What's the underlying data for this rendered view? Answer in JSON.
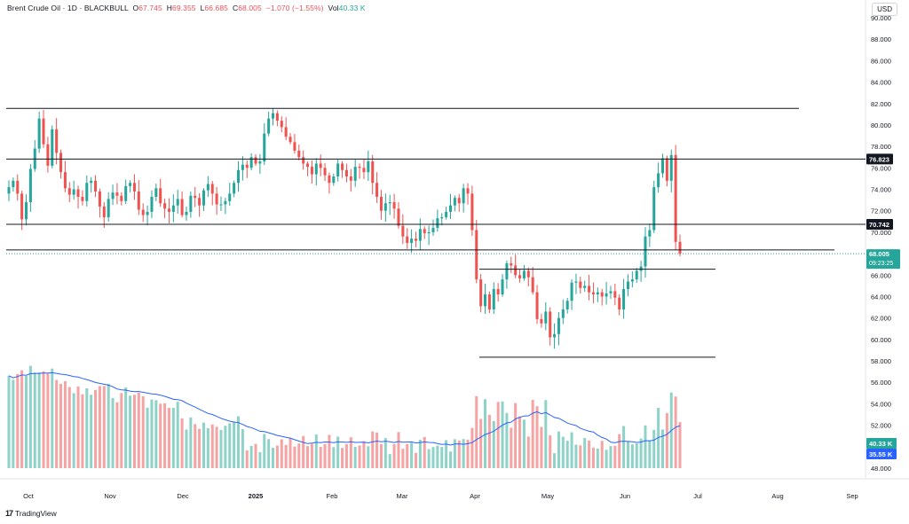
{
  "legend": {
    "symbol": "Brent Crude Oil · 1D · BLACKBULL",
    "open_label": "O",
    "open": "67.745",
    "high_label": "H",
    "high": "69.355",
    "low_label": "L",
    "low": "66.685",
    "close_label": "C",
    "close": "68.005",
    "change": "−1.070 (−1.55%)",
    "vol_label": "Vol",
    "vol": "40.33 K"
  },
  "currency": "USD",
  "branding": "TradingView",
  "colors": {
    "up": "#26a69a",
    "down": "#ef5350",
    "vol_up": "#8fd3c8",
    "vol_down": "#f5a3a3",
    "ma": "#2962ff",
    "level_tag": "#131722"
  },
  "chart_data": {
    "type": "candlestick",
    "y_axis": {
      "ticks": [
        "48.000",
        "50.000",
        "52.000",
        "54.000",
        "56.000",
        "58.000",
        "60.000",
        "62.000",
        "64.000",
        "66.000",
        "68.000",
        "70.000",
        "72.000",
        "74.000",
        "76.000",
        "78.000",
        "80.000",
        "82.000",
        "84.000",
        "86.000",
        "88.000",
        "90.000"
      ],
      "range": [
        48,
        90
      ]
    },
    "x_axis": {
      "ticks": [
        "Oct",
        "Nov",
        "Dec",
        "2025",
        "Feb",
        "Mar",
        "Apr",
        "May",
        "Jun",
        "Jul",
        "Aug",
        "Sep"
      ]
    },
    "price_levels": [
      {
        "label": "76.823",
        "value": 76.82,
        "tagged": true
      },
      {
        "label": "70.742",
        "value": 70.74,
        "tagged": true
      },
      {
        "value": 81.55,
        "tagged": false
      },
      {
        "value": 68.35,
        "tagged": false
      },
      {
        "value": 66.55,
        "tagged": false
      },
      {
        "value": 58.35,
        "tagged": false
      }
    ],
    "last_price": {
      "label": "68.005",
      "countdown": "09:23:25",
      "value": 68.0
    },
    "volume_tags": [
      {
        "label": "40.33 K",
        "series": "volume"
      },
      {
        "label": "35.55 K",
        "series": "volume_ma"
      }
    ],
    "closes": [
      74.2,
      74.8,
      73.6,
      71.2,
      72.8,
      75.9,
      77.8,
      80.6,
      78.2,
      76.2,
      79.6,
      77.4,
      75.6,
      74.1,
      73.5,
      74.0,
      73.3,
      72.9,
      74.6,
      74.8,
      73.8,
      72.4,
      71.4,
      73.1,
      73.7,
      73.4,
      72.9,
      74.3,
      74.6,
      73.8,
      72.1,
      71.6,
      71.9,
      73.3,
      74.1,
      72.7,
      72.2,
      71.9,
      72.5,
      73.1,
      71.6,
      71.9,
      73.4,
      73.2,
      72.5,
      73.9,
      74.5,
      73.6,
      72.6,
      72.6,
      72.9,
      73.6,
      74.6,
      75.8,
      76.3,
      76.0,
      77.0,
      76.4,
      76.6,
      79.2,
      80.6,
      81.1,
      80.4,
      79.8,
      78.9,
      78.4,
      77.6,
      77.0,
      76.4,
      76.1,
      75.4,
      76.4,
      76.0,
      75.3,
      74.6,
      75.2,
      76.4,
      75.8,
      75.2,
      74.8,
      76.1,
      76.0,
      75.6,
      76.6,
      74.6,
      73.3,
      72.0,
      72.7,
      72.8,
      72.2,
      70.6,
      69.6,
      69.0,
      69.4,
      69.2,
      70.3,
      69.9,
      70.0,
      70.4,
      71.3,
      71.4,
      71.9,
      72.5,
      73.2,
      72.7,
      74.1,
      73.6,
      70.2,
      65.6,
      63.1,
      64.2,
      62.8,
      64.7,
      64.2,
      65.6,
      67.1,
      66.9,
      66.0,
      65.7,
      66.4,
      65.8,
      64.4,
      61.9,
      61.5,
      62.6,
      60.2,
      60.5,
      62.0,
      62.8,
      63.6,
      65.3,
      65.4,
      64.8,
      65.0,
      64.4,
      64.2,
      64.4,
      64.0,
      64.3,
      64.5,
      63.9,
      62.8,
      64.7,
      65.4,
      65.6,
      66.4,
      66.8,
      69.6,
      70.2,
      74.2,
      75.5,
      76.9,
      74.8,
      77.2,
      69.1,
      68.0
    ],
    "volume": {
      "last": 40.33,
      "ma_last": 35.55,
      "unit": "K"
    }
  }
}
